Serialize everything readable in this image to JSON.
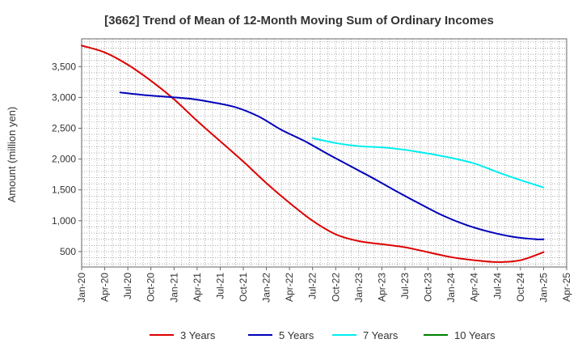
{
  "chart_data": {
    "type": "line",
    "title": "[3662]  Trend of Mean of 12-Month Moving Sum of Ordinary Incomes",
    "xlabel": "",
    "ylabel": "Amount (million yen)",
    "x_ticks": [
      "Jan-20",
      "Apr-20",
      "Jul-20",
      "Oct-20",
      "Jan-21",
      "Apr-21",
      "Jul-21",
      "Oct-21",
      "Jan-22",
      "Apr-22",
      "Jul-22",
      "Oct-22",
      "Jan-23",
      "Apr-23",
      "Jul-23",
      "Oct-23",
      "Jan-24",
      "Apr-24",
      "Jul-24",
      "Oct-24",
      "Jan-25",
      "Apr-25"
    ],
    "y_ticks": [
      "500",
      "1,000",
      "1,500",
      "2,000",
      "2,500",
      "3,000",
      "3,500"
    ],
    "y_tick_values": [
      500,
      1000,
      1500,
      2000,
      2500,
      3000,
      3500
    ],
    "ylim": [
      250,
      3950
    ],
    "x_index_range": [
      0,
      63
    ],
    "grid": true,
    "legend_position": "bottom",
    "series": [
      {
        "name": "3 Years",
        "color": "#dd0000",
        "x_index": [
          0,
          3,
          6,
          9,
          12,
          15,
          18,
          21,
          24,
          27,
          30,
          33,
          36,
          39,
          42,
          45,
          48,
          51,
          54,
          57,
          60
        ],
        "values": [
          3840,
          3730,
          3530,
          3270,
          2970,
          2620,
          2290,
          1960,
          1610,
          1290,
          1000,
          780,
          670,
          620,
          570,
          490,
          410,
          360,
          330,
          360,
          490
        ]
      },
      {
        "name": "5 Years",
        "color": "#0000bb",
        "x_index": [
          5,
          8,
          11,
          14,
          17,
          20,
          23,
          26,
          29,
          32,
          35,
          38,
          41,
          44,
          47,
          50,
          53,
          56,
          59,
          60
        ],
        "values": [
          3080,
          3040,
          3010,
          2980,
          2920,
          2840,
          2690,
          2470,
          2290,
          2080,
          1880,
          1680,
          1470,
          1270,
          1080,
          930,
          820,
          740,
          700,
          700
        ]
      },
      {
        "name": "7 Years",
        "color": "#00eeee",
        "x_index": [
          30,
          33,
          36,
          39,
          42,
          45,
          48,
          51,
          54,
          57,
          60
        ],
        "values": [
          2340,
          2260,
          2210,
          2190,
          2150,
          2090,
          2020,
          1930,
          1790,
          1660,
          1540
        ]
      },
      {
        "name": "10 Years",
        "color": "#008000",
        "x_index": [],
        "values": []
      }
    ]
  }
}
